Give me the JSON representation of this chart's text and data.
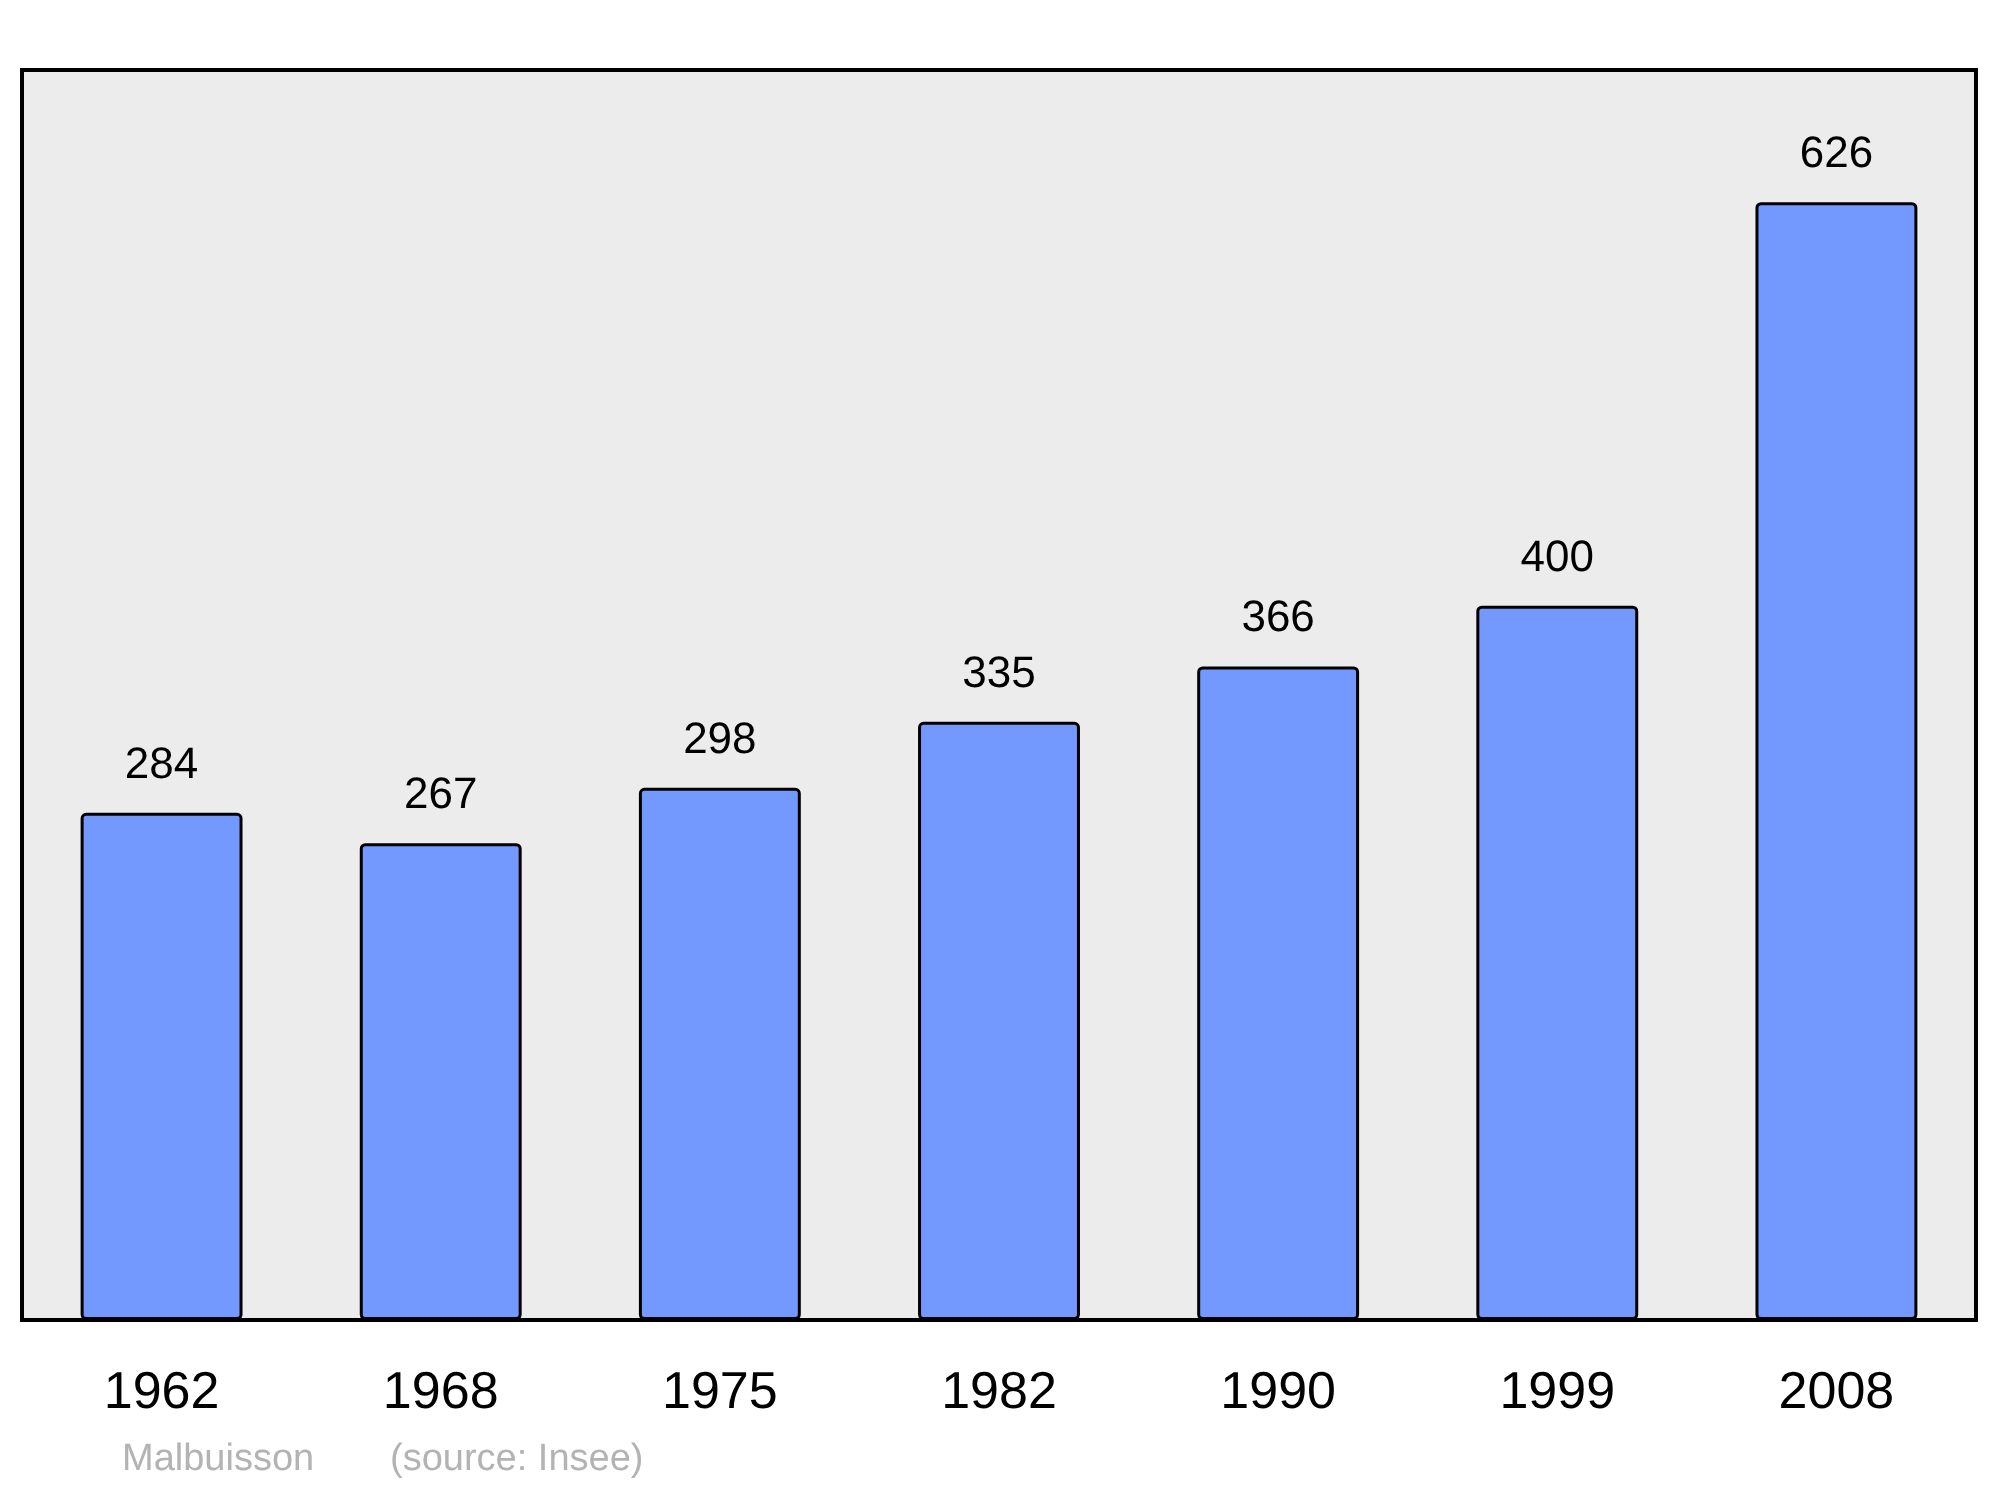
{
  "chart_data": {
    "type": "bar",
    "categories": [
      "1962",
      "1968",
      "1975",
      "1982",
      "1990",
      "1999",
      "2008"
    ],
    "values": [
      284,
      267,
      298,
      335,
      366,
      400,
      626
    ],
    "color": "#7399ff",
    "data_labels": true,
    "annotations": [
      "Malbuisson",
      "(source: Insee)"
    ]
  }
}
